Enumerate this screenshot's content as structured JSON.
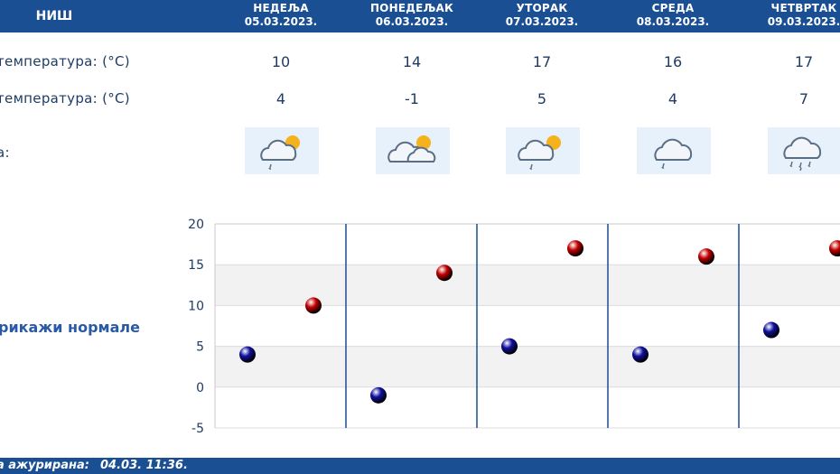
{
  "header": {
    "city": "НИШ"
  },
  "days": [
    {
      "name": "НЕДЕЉА",
      "date": "05.03.2023.",
      "max": "10",
      "min": "4",
      "icon": "cloud-sun-light-rain-icon"
    },
    {
      "name": "ПОНЕДЕЉАК",
      "date": "06.03.2023.",
      "max": "14",
      "min": "-1",
      "icon": "cloud-sun-icon"
    },
    {
      "name": "УТОРАК",
      "date": "07.03.2023.",
      "max": "17",
      "min": "5",
      "icon": "cloud-sun-light-rain-icon"
    },
    {
      "name": "СРЕДА",
      "date": "08.03.2023.",
      "max": "16",
      "min": "4",
      "icon": "cloud-light-rain-icon"
    },
    {
      "name": "ЧЕТВРТАК",
      "date": "09.03.2023.",
      "max": "17",
      "min": "7",
      "icon": "cloud-rain-icon"
    }
  ],
  "labels": {
    "max": "температура: (°C)",
    "min": "температура: (°C)",
    "weather": "а:",
    "normals": "рикажи нормале"
  },
  "footer": {
    "label": "а ажурирана:",
    "time": "04.03. 11:36."
  },
  "colors": {
    "header": "#1a4f93",
    "min_marker": "#1010a0",
    "max_marker": "#c40000",
    "band": "#f2f2f2"
  },
  "chart_data": {
    "type": "scatter",
    "ylim": [
      -5,
      20
    ],
    "y_ticks": [
      "20",
      "15",
      "10",
      "5",
      "0",
      "-5"
    ],
    "categories": [
      "05.03.2023.",
      "06.03.2023.",
      "07.03.2023.",
      "08.03.2023.",
      "09.03.2023."
    ],
    "series": [
      {
        "values": [
          4,
          -1,
          5,
          4,
          7
        ],
        "color": "#1010a0"
      },
      {
        "values": [
          10,
          14,
          17,
          16,
          17
        ],
        "color": "#c40000"
      }
    ]
  }
}
